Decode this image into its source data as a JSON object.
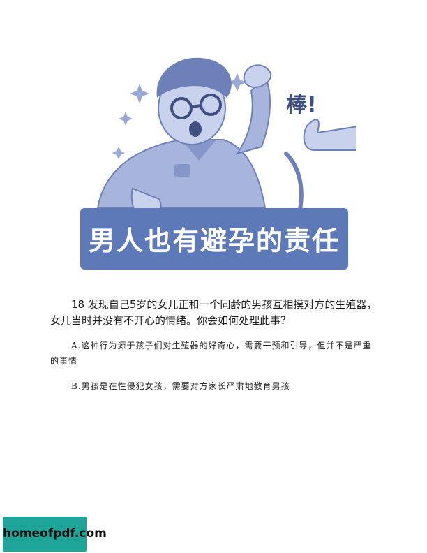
{
  "banner": {
    "title": "男人也有避孕的责任",
    "sticker": "棒!"
  },
  "question": {
    "text": "18 发现自己5岁的女儿正和一个同龄的男孩互相摸对方的生殖器，女儿当时并没有不开心的情绪。你会如何处理此事？"
  },
  "options": [
    {
      "text": "A.这种行为源于孩子们对生殖器的好奇心，需要干预和引导，但并不是严重的事情"
    },
    {
      "text": "B.男孩是在性侵犯女孩，需要对方家长严肃地教育男孩"
    }
  ],
  "watermark": {
    "text": "homeofpdf.com"
  },
  "colors": {
    "accent": "#5d79b8",
    "illustration": "#9aaad4",
    "watermark_bg": "#1fa49a"
  }
}
